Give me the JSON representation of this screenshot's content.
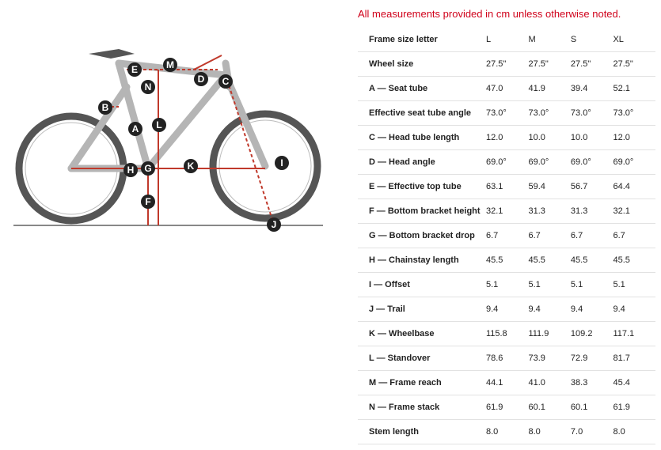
{
  "note": "All measurements provided in cm unless otherwise noted.",
  "table": {
    "header": [
      "Frame size letter",
      "L",
      "M",
      "S",
      "XL"
    ],
    "rows": [
      [
        "Wheel size",
        "27.5\"",
        "27.5\"",
        "27.5\"",
        "27.5\""
      ],
      [
        "A — Seat tube",
        "47.0",
        "41.9",
        "39.4",
        "52.1"
      ],
      [
        "Effective seat tube angle",
        "73.0°",
        "73.0°",
        "73.0°",
        "73.0°"
      ],
      [
        "C — Head tube length",
        "12.0",
        "10.0",
        "10.0",
        "12.0"
      ],
      [
        "D — Head angle",
        "69.0°",
        "69.0°",
        "69.0°",
        "69.0°"
      ],
      [
        "E — Effective top tube",
        "63.1",
        "59.4",
        "56.7",
        "64.4"
      ],
      [
        "F — Bottom bracket height",
        "32.1",
        "31.3",
        "31.3",
        "32.1"
      ],
      [
        "G — Bottom bracket drop",
        "6.7",
        "6.7",
        "6.7",
        "6.7"
      ],
      [
        "H — Chainstay length",
        "45.5",
        "45.5",
        "45.5",
        "45.5"
      ],
      [
        "I — Offset",
        "5.1",
        "5.1",
        "5.1",
        "5.1"
      ],
      [
        "J — Trail",
        "9.4",
        "9.4",
        "9.4",
        "9.4"
      ],
      [
        "K — Wheelbase",
        "115.8",
        "111.9",
        "109.2",
        "117.1"
      ],
      [
        "L — Standover",
        "78.6",
        "73.9",
        "72.9",
        "81.7"
      ],
      [
        "M — Frame reach",
        "44.1",
        "41.0",
        "38.3",
        "45.4"
      ],
      [
        "N — Frame stack",
        "61.9",
        "60.1",
        "60.1",
        "61.9"
      ],
      [
        "Stem length",
        "8.0",
        "8.0",
        "7.0",
        "8.0"
      ]
    ]
  },
  "diagram": {
    "labels": [
      "E",
      "M",
      "N",
      "D",
      "C",
      "B",
      "A",
      "L",
      "K",
      "H",
      "G",
      "F",
      "I",
      "J"
    ]
  }
}
